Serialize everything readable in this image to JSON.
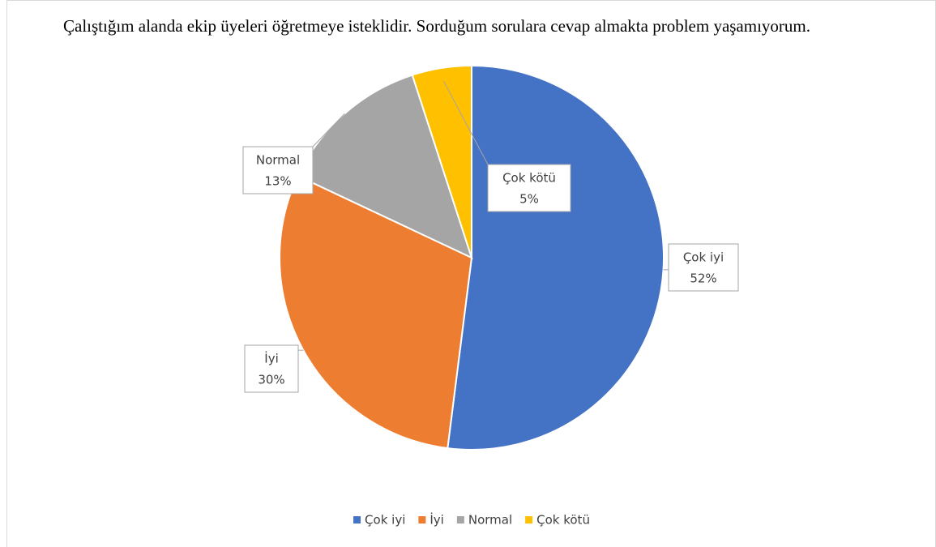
{
  "chart_data": {
    "type": "pie",
    "title": "Çalıştığım alanda ekip üyeleri öğretmeye isteklidir. Sorduğum sorulara cevap almakta problem yaşamıyorum.",
    "categories": [
      "Çok iyi",
      "İyi",
      "Normal",
      "Çok kötü"
    ],
    "values": [
      52,
      30,
      13,
      5
    ],
    "value_labels": [
      "52%",
      "30%",
      "13%",
      "5%"
    ],
    "colors": [
      "#4472c4",
      "#ed7d31",
      "#a5a5a5",
      "#ffc000"
    ],
    "legend": "bottom"
  }
}
